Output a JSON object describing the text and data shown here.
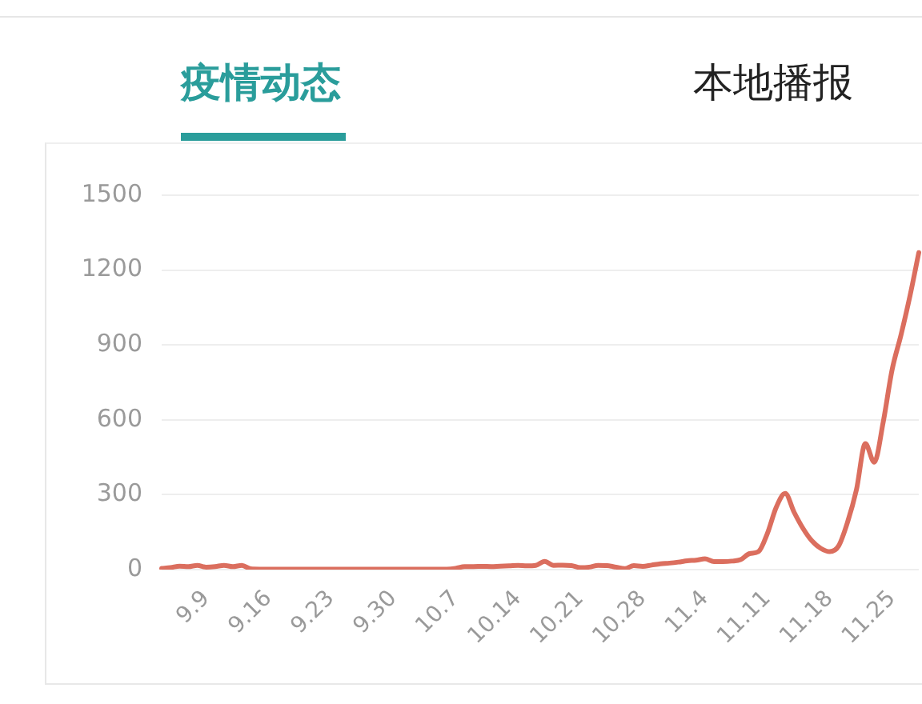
{
  "chart_data": {
    "type": "line",
    "title": "疫情动态",
    "annotations": [
      "本地播报"
    ],
    "categories": [
      null,
      null,
      null,
      null,
      null,
      "9.9",
      null,
      null,
      null,
      null,
      null,
      null,
      "9.16",
      null,
      null,
      null,
      null,
      null,
      null,
      "9.23",
      null,
      null,
      null,
      null,
      null,
      null,
      "9.30",
      null,
      null,
      null,
      null,
      null,
      null,
      "10.7",
      null,
      null,
      null,
      null,
      null,
      null,
      "10.14",
      null,
      null,
      null,
      null,
      null,
      null,
      "10.21",
      null,
      null,
      null,
      null,
      null,
      null,
      "10.28",
      null,
      null,
      null,
      null,
      null,
      null,
      "11.4",
      null,
      null,
      null,
      null,
      null,
      null,
      "11.11",
      null,
      null,
      null,
      null,
      null,
      null,
      "11.18",
      null,
      null,
      null,
      null,
      null,
      null,
      "11.25",
      null,
      null,
      null
    ],
    "series": [
      {
        "color": "#db6e5e",
        "values": [
          5,
          8,
          14,
          12,
          17,
          10,
          12,
          17,
          12,
          17,
          3,
          2,
          2,
          2,
          2,
          2,
          2,
          2,
          2,
          2,
          2,
          2,
          2,
          2,
          2,
          2,
          2,
          2,
          2,
          2,
          2,
          2,
          2,
          5,
          12,
          12,
          13,
          12,
          14,
          15,
          17,
          15,
          17,
          33,
          17,
          18,
          16,
          8,
          10,
          17,
          16,
          10,
          4,
          16,
          13,
          18,
          23,
          26,
          30,
          35,
          38,
          43,
          32,
          32,
          34,
          40,
          64,
          72,
          145,
          250,
          305,
          230,
          165,
          115,
          85,
          72,
          95,
          190,
          320,
          505,
          430,
          590,
          800,
          940,
          1095,
          1270
        ]
      }
    ],
    "ylim": [
      0,
      1500
    ],
    "yticks": [
      0,
      300,
      600,
      900,
      1200,
      1500
    ],
    "grid": "y"
  }
}
